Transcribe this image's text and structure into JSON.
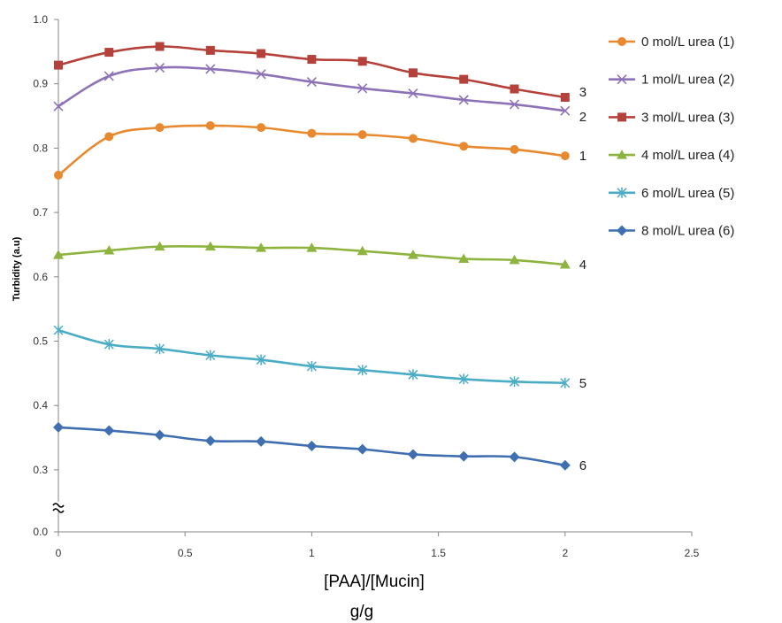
{
  "chart_data": {
    "type": "line",
    "ylabel": "Turbidity (a.u)",
    "xlabel_line1": "[PAA]/[Mucin]",
    "xlabel_line2": "g/g",
    "xlim": [
      0,
      2.5
    ],
    "xticks": [
      0,
      0.5,
      1,
      1.5,
      2,
      2.5
    ],
    "xtick_labels": [
      "0",
      "0.5",
      "1",
      "1.5",
      "2",
      "2.5"
    ],
    "ylim": [
      0.25,
      1.0
    ],
    "yticks": [
      0.3,
      0.4,
      0.5,
      0.6,
      0.7,
      0.8,
      0.9,
      1.0
    ],
    "ytick_labels": [
      "0.3",
      "0.4",
      "0.5",
      "0.6",
      "0.7",
      "0.8",
      "0.9",
      "1.0"
    ],
    "y_break": true,
    "y_break_label": "0.0",
    "grid": false,
    "legend_position": "right",
    "x": [
      0,
      0.2,
      0.4,
      0.6,
      0.8,
      1.0,
      1.2,
      1.4,
      1.6,
      1.8,
      2.0
    ],
    "series": [
      {
        "name": "0 mol/L urea (1)",
        "end_label": "1",
        "color": "#E8892F",
        "marker": "circle",
        "values": [
          0.758,
          0.818,
          0.832,
          0.835,
          0.832,
          0.823,
          0.821,
          0.815,
          0.803,
          0.798,
          0.788
        ]
      },
      {
        "name": "1 mol/L urea (2)",
        "end_label": "2",
        "color": "#8E72B8",
        "marker": "x",
        "values": [
          0.865,
          0.912,
          0.925,
          0.923,
          0.915,
          0.903,
          0.893,
          0.885,
          0.875,
          0.868,
          0.858
        ]
      },
      {
        "name": "3 mol/L urea (3)",
        "end_label": "3",
        "color": "#B5413B",
        "marker": "square",
        "values": [
          0.929,
          0.949,
          0.958,
          0.952,
          0.947,
          0.938,
          0.935,
          0.917,
          0.907,
          0.892,
          0.879
        ]
      },
      {
        "name": "4 mol/L urea (4)",
        "end_label": "4",
        "color": "#8DB43F",
        "marker": "triangle",
        "values": [
          0.634,
          0.641,
          0.647,
          0.647,
          0.645,
          0.645,
          0.64,
          0.634,
          0.628,
          0.626,
          0.619
        ]
      },
      {
        "name": "6 mol/L urea (5)",
        "end_label": "5",
        "color": "#4BACC6",
        "marker": "asterisk",
        "values": [
          0.517,
          0.495,
          0.488,
          0.478,
          0.471,
          0.461,
          0.455,
          0.448,
          0.441,
          0.437,
          0.435
        ]
      },
      {
        "name": "8 mol/L urea (6)",
        "end_label": "6",
        "color": "#3F6FB0",
        "marker": "diamond",
        "values": [
          0.366,
          0.361,
          0.354,
          0.345,
          0.344,
          0.337,
          0.332,
          0.324,
          0.321,
          0.32,
          0.307
        ]
      }
    ]
  }
}
